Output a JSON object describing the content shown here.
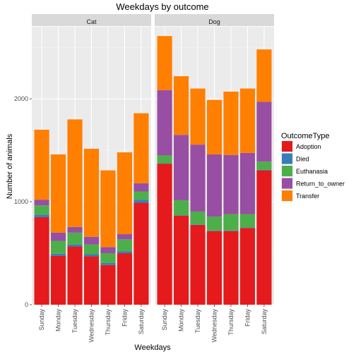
{
  "chart_data": {
    "type": "bar",
    "stacked": true,
    "title": "Weekdays by outcome",
    "xlabel": "Weekdays",
    "ylabel": "Number of animals",
    "ylim": [
      0,
      2700
    ],
    "yticks": [
      0,
      1000,
      2000
    ],
    "ytick_labels": [
      "0",
      "1000",
      "2000"
    ],
    "grid": true,
    "legend": {
      "title": "OutcomeType",
      "position": "right",
      "items": [
        {
          "label": "Adoption",
          "color": "#e41a1c"
        },
        {
          "label": "Died",
          "color": "#377eb8"
        },
        {
          "label": "Euthanasia",
          "color": "#4daf4a"
        },
        {
          "label": "Return_to_owner",
          "color": "#984ea3"
        },
        {
          "label": "Transfer",
          "color": "#ff7f00"
        }
      ]
    },
    "categories": [
      "Sunday",
      "Monday",
      "Tuesday",
      "Wednesday",
      "Thursday",
      "Friday",
      "Saturday"
    ],
    "facets": [
      {
        "name": "Cat",
        "series": [
          {
            "name": "Adoption",
            "values": [
              850,
              475,
              565,
              470,
              385,
              500,
              990
            ]
          },
          {
            "name": "Died",
            "values": [
              25,
              20,
              20,
              20,
              20,
              20,
              30
            ]
          },
          {
            "name": "Euthanasia",
            "values": [
              90,
              125,
              115,
              95,
              95,
              115,
              80
            ]
          },
          {
            "name": "Return_to_owner",
            "values": [
              55,
              80,
              55,
              75,
              60,
              50,
              80
            ]
          },
          {
            "name": "Transfer",
            "values": [
              680,
              760,
              1045,
              855,
              745,
              795,
              680
            ]
          }
        ]
      },
      {
        "name": "Dog",
        "series": [
          {
            "name": "Adoption",
            "values": [
              1370,
              865,
              775,
              715,
              715,
              745,
              1305
            ]
          },
          {
            "name": "Died",
            "values": [
              5,
              5,
              5,
              5,
              5,
              5,
              5
            ]
          },
          {
            "name": "Euthanasia",
            "values": [
              75,
              145,
              125,
              135,
              160,
              130,
              80
            ]
          },
          {
            "name": "Return_to_owner",
            "values": [
              635,
              635,
              650,
              605,
              575,
              595,
              580
            ]
          },
          {
            "name": "Transfer",
            "values": [
              525,
              570,
              545,
              530,
              615,
              625,
              510
            ]
          }
        ]
      }
    ]
  }
}
